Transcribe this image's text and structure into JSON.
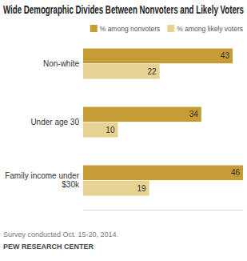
{
  "chart_data": {
    "type": "bar",
    "orientation": "horizontal",
    "title": "Wide Demographic Divides Between Nonvoters and Likely Voters",
    "categories": [
      "Non-white",
      "Under age 30",
      "Family income under $30k"
    ],
    "series": [
      {
        "name": "% among nonvoters",
        "color": "#c69c34",
        "values": [
          43,
          34,
          46
        ]
      },
      {
        "name": "% among likely voters",
        "color": "#e6d293",
        "values": [
          22,
          10,
          19
        ]
      }
    ],
    "xlim": [
      0,
      46
    ],
    "data_labels": true,
    "tick_labels": "y",
    "legend": "top-right",
    "annotations": [
      "Survey conducted Oct. 15-20, 2014.",
      "PEW RESEARCH CENTER"
    ]
  }
}
